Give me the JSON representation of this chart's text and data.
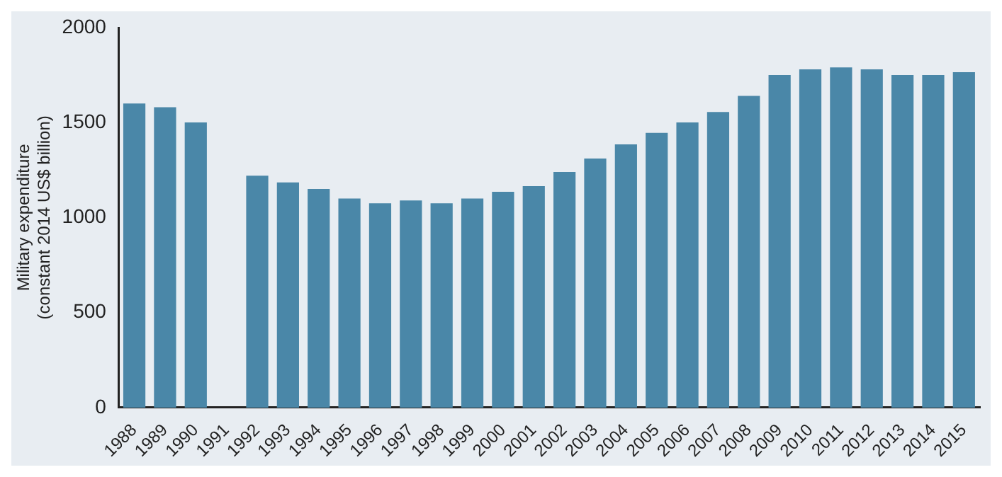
{
  "chart_data": {
    "type": "bar",
    "ylabel": "Military expenditure\n(constant 2014 US$ billion)",
    "categories": [
      "1988",
      "1989",
      "1990",
      "1991",
      "1992",
      "1993",
      "1994",
      "1995",
      "1996",
      "1997",
      "1998",
      "1999",
      "2000",
      "2001",
      "2002",
      "2003",
      "2004",
      "2005",
      "2006",
      "2007",
      "2008",
      "2009",
      "2010",
      "2011",
      "2012",
      "2013",
      "2014",
      "2015"
    ],
    "values": [
      1600,
      1580,
      1500,
      null,
      1220,
      1185,
      1150,
      1100,
      1075,
      1090,
      1075,
      1100,
      1135,
      1165,
      1240,
      1310,
      1385,
      1445,
      1500,
      1555,
      1640,
      1750,
      1780,
      1790,
      1780,
      1750,
      1750,
      1765
    ],
    "color": "#4a87a8",
    "ylim": [
      0,
      2000
    ],
    "yticks": [
      0,
      500,
      1000,
      1500,
      2000
    ],
    "grid": false,
    "legend": false
  }
}
